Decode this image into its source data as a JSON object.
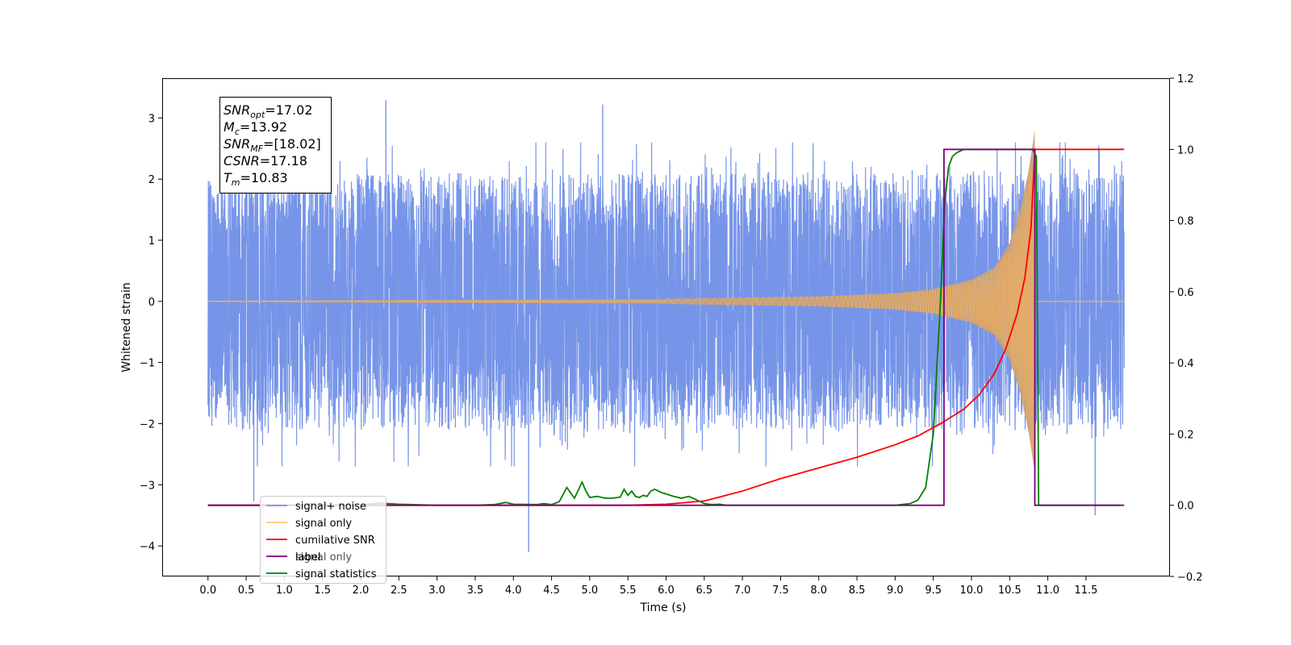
{
  "chart_data": {
    "type": "line",
    "xlabel": "Time (s)",
    "ylabel": "Whitened strain",
    "xlim": [
      -0.6,
      12.6
    ],
    "ylim": [
      -4.5,
      3.65
    ],
    "y2lim": [
      -0.2,
      1.2
    ],
    "x_ticks": [
      0.0,
      0.5,
      1.0,
      1.5,
      2.0,
      2.5,
      3.0,
      3.5,
      4.0,
      4.5,
      5.0,
      5.5,
      6.0,
      6.5,
      7.0,
      7.5,
      8.0,
      8.5,
      9.0,
      9.5,
      10.0,
      10.5,
      11.0,
      11.5
    ],
    "x_tick_labels": [
      "0.0",
      "0.5",
      "1.0",
      "1.5",
      "2.0",
      "2.5",
      "3.0",
      "3.5",
      "4.0",
      "4.5",
      "5.0",
      "5.5",
      "6.0",
      "6.5",
      "7.0",
      "7.5",
      "8.0",
      "8.5",
      "9.0",
      "9.5",
      "10.0",
      "10.5",
      "11.0",
      "11.5"
    ],
    "y_ticks": [
      3,
      2,
      1,
      0,
      -1,
      -2,
      -3,
      -4
    ],
    "y_tick_labels": [
      "3",
      "2",
      "1",
      "0",
      "−1",
      "−2",
      "−3",
      "−4"
    ],
    "y2_ticks": [
      1.2,
      1.0,
      0.8,
      0.6,
      0.4,
      0.2,
      0.0,
      -0.2
    ],
    "y2_tick_labels": [
      "1.2",
      "1.0",
      "0.8",
      "0.6",
      "0.4",
      "0.2",
      "0.0",
      "−0.2"
    ],
    "grid": false,
    "legend_placement": "lower-left",
    "info_box": {
      "lines": [
        {
          "base": "SNR",
          "sub": "opt",
          "value": "=17.02"
        },
        {
          "base": "M",
          "sub": "c",
          "value": "=13.92"
        },
        {
          "base": "SNR",
          "sub": "MF",
          "value": "=[18.02]"
        },
        {
          "base": "CSNR",
          "sub": "",
          "value": "=17.18"
        },
        {
          "base": "T",
          "sub": "m",
          "value": "=10.83"
        }
      ]
    },
    "series": [
      {
        "name": "signal+ noise",
        "color": "#7795e8",
        "axis": "left",
        "style": "noise",
        "x_range": [
          0.0,
          12.0
        ],
        "sigma": 1.0,
        "envelope_max_approx": 3.3,
        "envelope_min_approx": -4.1,
        "notable_peaks": [
          [
            2.33,
            3.29
          ],
          [
            5.17,
            3.22
          ],
          [
            4.2,
            -4.1
          ],
          [
            11.62,
            -3.5
          ],
          [
            0.6,
            -3.27
          ]
        ]
      },
      {
        "name": "signal only",
        "color": "#f0b060",
        "fill": "#c8a078",
        "axis": "left",
        "style": "chirp",
        "envelope": [
          [
            0.0,
            0.01
          ],
          [
            6.0,
            0.04
          ],
          [
            8.0,
            0.08
          ],
          [
            9.0,
            0.13
          ],
          [
            9.5,
            0.2
          ],
          [
            10.0,
            0.35
          ],
          [
            10.3,
            0.55
          ],
          [
            10.5,
            0.95
          ],
          [
            10.65,
            1.55
          ],
          [
            10.75,
            2.15
          ],
          [
            10.83,
            2.8
          ]
        ],
        "merger_time": 10.83
      },
      {
        "name": "cumilative SNR",
        "color": "#ff0000",
        "axis": "right",
        "x": [
          0.0,
          5.5,
          6.0,
          6.5,
          7.0,
          7.5,
          8.0,
          8.5,
          9.0,
          9.3,
          9.6,
          9.9,
          10.1,
          10.3,
          10.45,
          10.6,
          10.7,
          10.78,
          10.83,
          11.0,
          12.0
        ],
        "y": [
          0.0,
          0.0,
          0.003,
          0.012,
          0.04,
          0.075,
          0.105,
          0.135,
          0.17,
          0.195,
          0.23,
          0.27,
          0.31,
          0.37,
          0.44,
          0.54,
          0.64,
          0.78,
          1.0,
          1.0,
          1.0
        ]
      },
      {
        "name": "label",
        "color": "#800080",
        "axis": "right",
        "x": [
          0.0,
          9.64,
          9.64,
          10.83,
          10.83,
          12.0
        ],
        "y": [
          0.0,
          0.0,
          1.0,
          1.0,
          0.0,
          0.0
        ]
      },
      {
        "name": "signal statistics",
        "color": "#008000",
        "axis": "right",
        "x": [
          0.0,
          1.0,
          2.0,
          2.25,
          2.5,
          3.0,
          3.5,
          3.75,
          3.9,
          4.0,
          4.3,
          4.4,
          4.5,
          4.6,
          4.7,
          4.8,
          4.9,
          4.95,
          5.0,
          5.1,
          5.2,
          5.3,
          5.4,
          5.45,
          5.5,
          5.55,
          5.6,
          5.65,
          5.7,
          5.75,
          5.8,
          5.85,
          5.9,
          5.95,
          6.0,
          6.1,
          6.2,
          6.3,
          6.4,
          6.5,
          6.6,
          6.7,
          6.8,
          7.0,
          9.0,
          9.2,
          9.3,
          9.4,
          9.5,
          9.6,
          9.65,
          9.7,
          9.75,
          9.8,
          9.9,
          10.0,
          10.8,
          10.85,
          10.88,
          11.0,
          11.95
        ],
        "y": [
          0.0,
          0.0,
          0.001,
          0.006,
          0.003,
          0.0,
          0.0,
          0.002,
          0.008,
          0.003,
          0.002,
          0.005,
          0.002,
          0.01,
          0.05,
          0.02,
          0.065,
          0.04,
          0.022,
          0.025,
          0.02,
          0.02,
          0.023,
          0.045,
          0.028,
          0.04,
          0.025,
          0.022,
          0.028,
          0.025,
          0.04,
          0.045,
          0.04,
          0.035,
          0.032,
          0.025,
          0.02,
          0.025,
          0.015,
          0.005,
          0.002,
          0.003,
          0.0,
          0.0,
          0.0,
          0.005,
          0.015,
          0.05,
          0.2,
          0.6,
          0.85,
          0.95,
          0.98,
          0.99,
          1.0,
          1.0,
          1.0,
          0.98,
          0.0,
          0.0,
          0.0
        ]
      }
    ],
    "legend": [
      "signal+ noise",
      "signal only",
      "cumilative SNR",
      "label",
      "signal statistics"
    ],
    "legend_overlapped_text": [
      "signal only"
    ]
  }
}
